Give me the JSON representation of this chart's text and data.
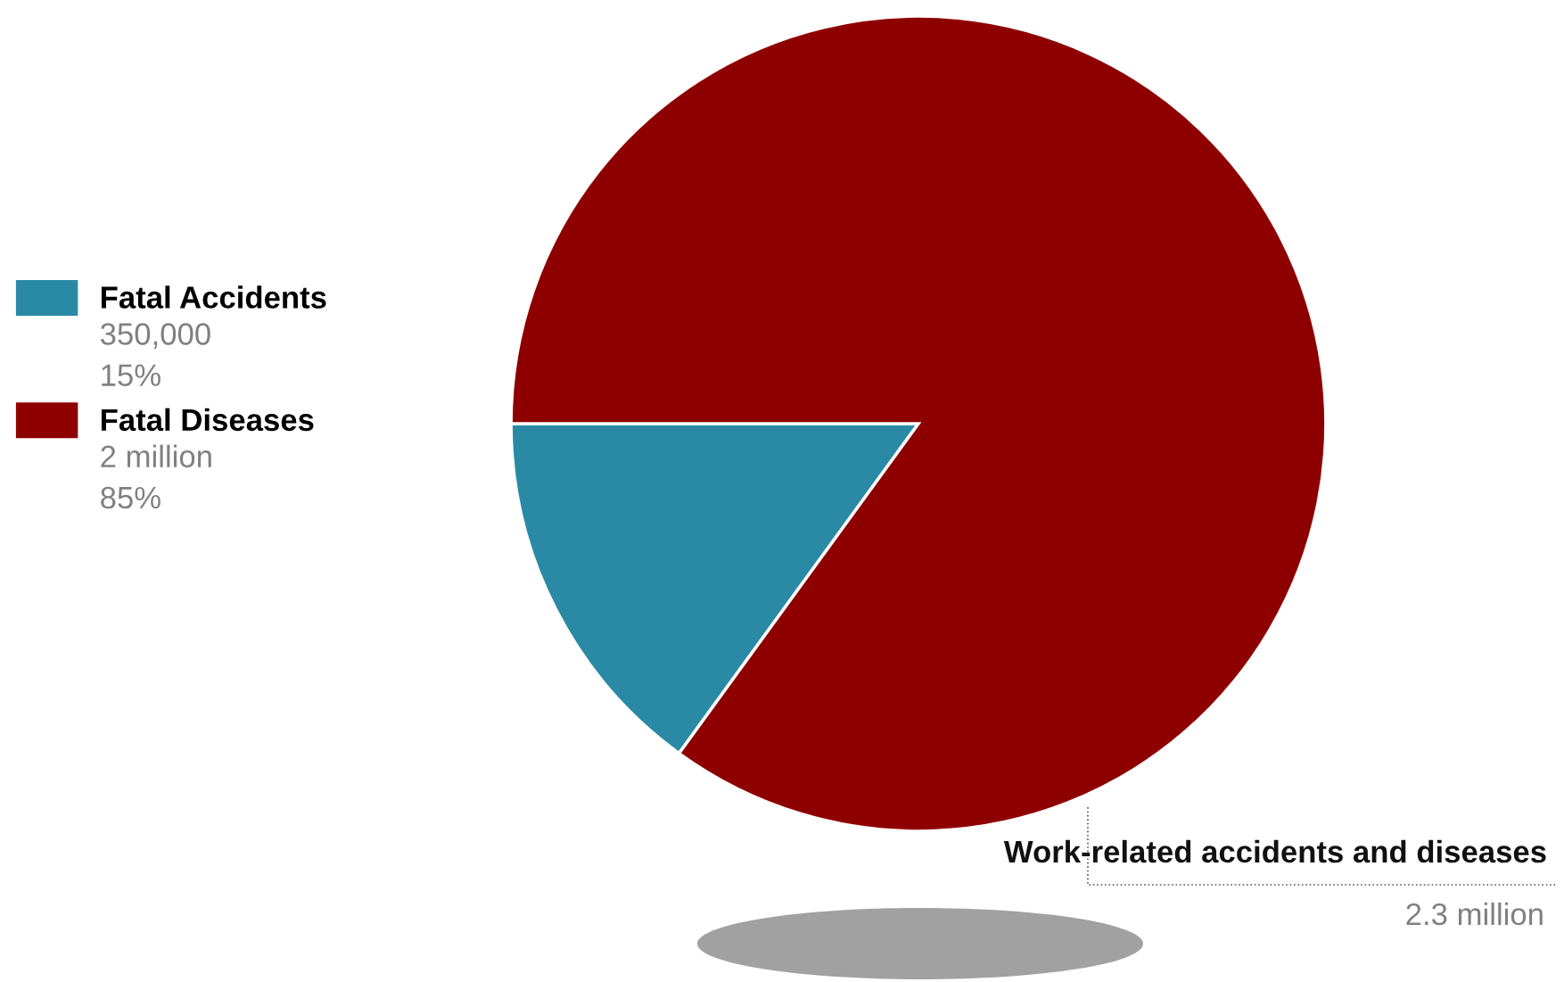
{
  "chart_data": {
    "type": "pie",
    "categories": [
      "Fatal Accidents",
      "Fatal Diseases"
    ],
    "values": [
      15,
      85
    ],
    "colors": [
      "#2a8aa6",
      "#8e0000"
    ],
    "value_labels": [
      "350,000\n15%",
      "2 million\n85%"
    ],
    "legend": "left",
    "annotations": [
      "Work-related accidents and diseases",
      "2.3 million"
    ]
  }
}
